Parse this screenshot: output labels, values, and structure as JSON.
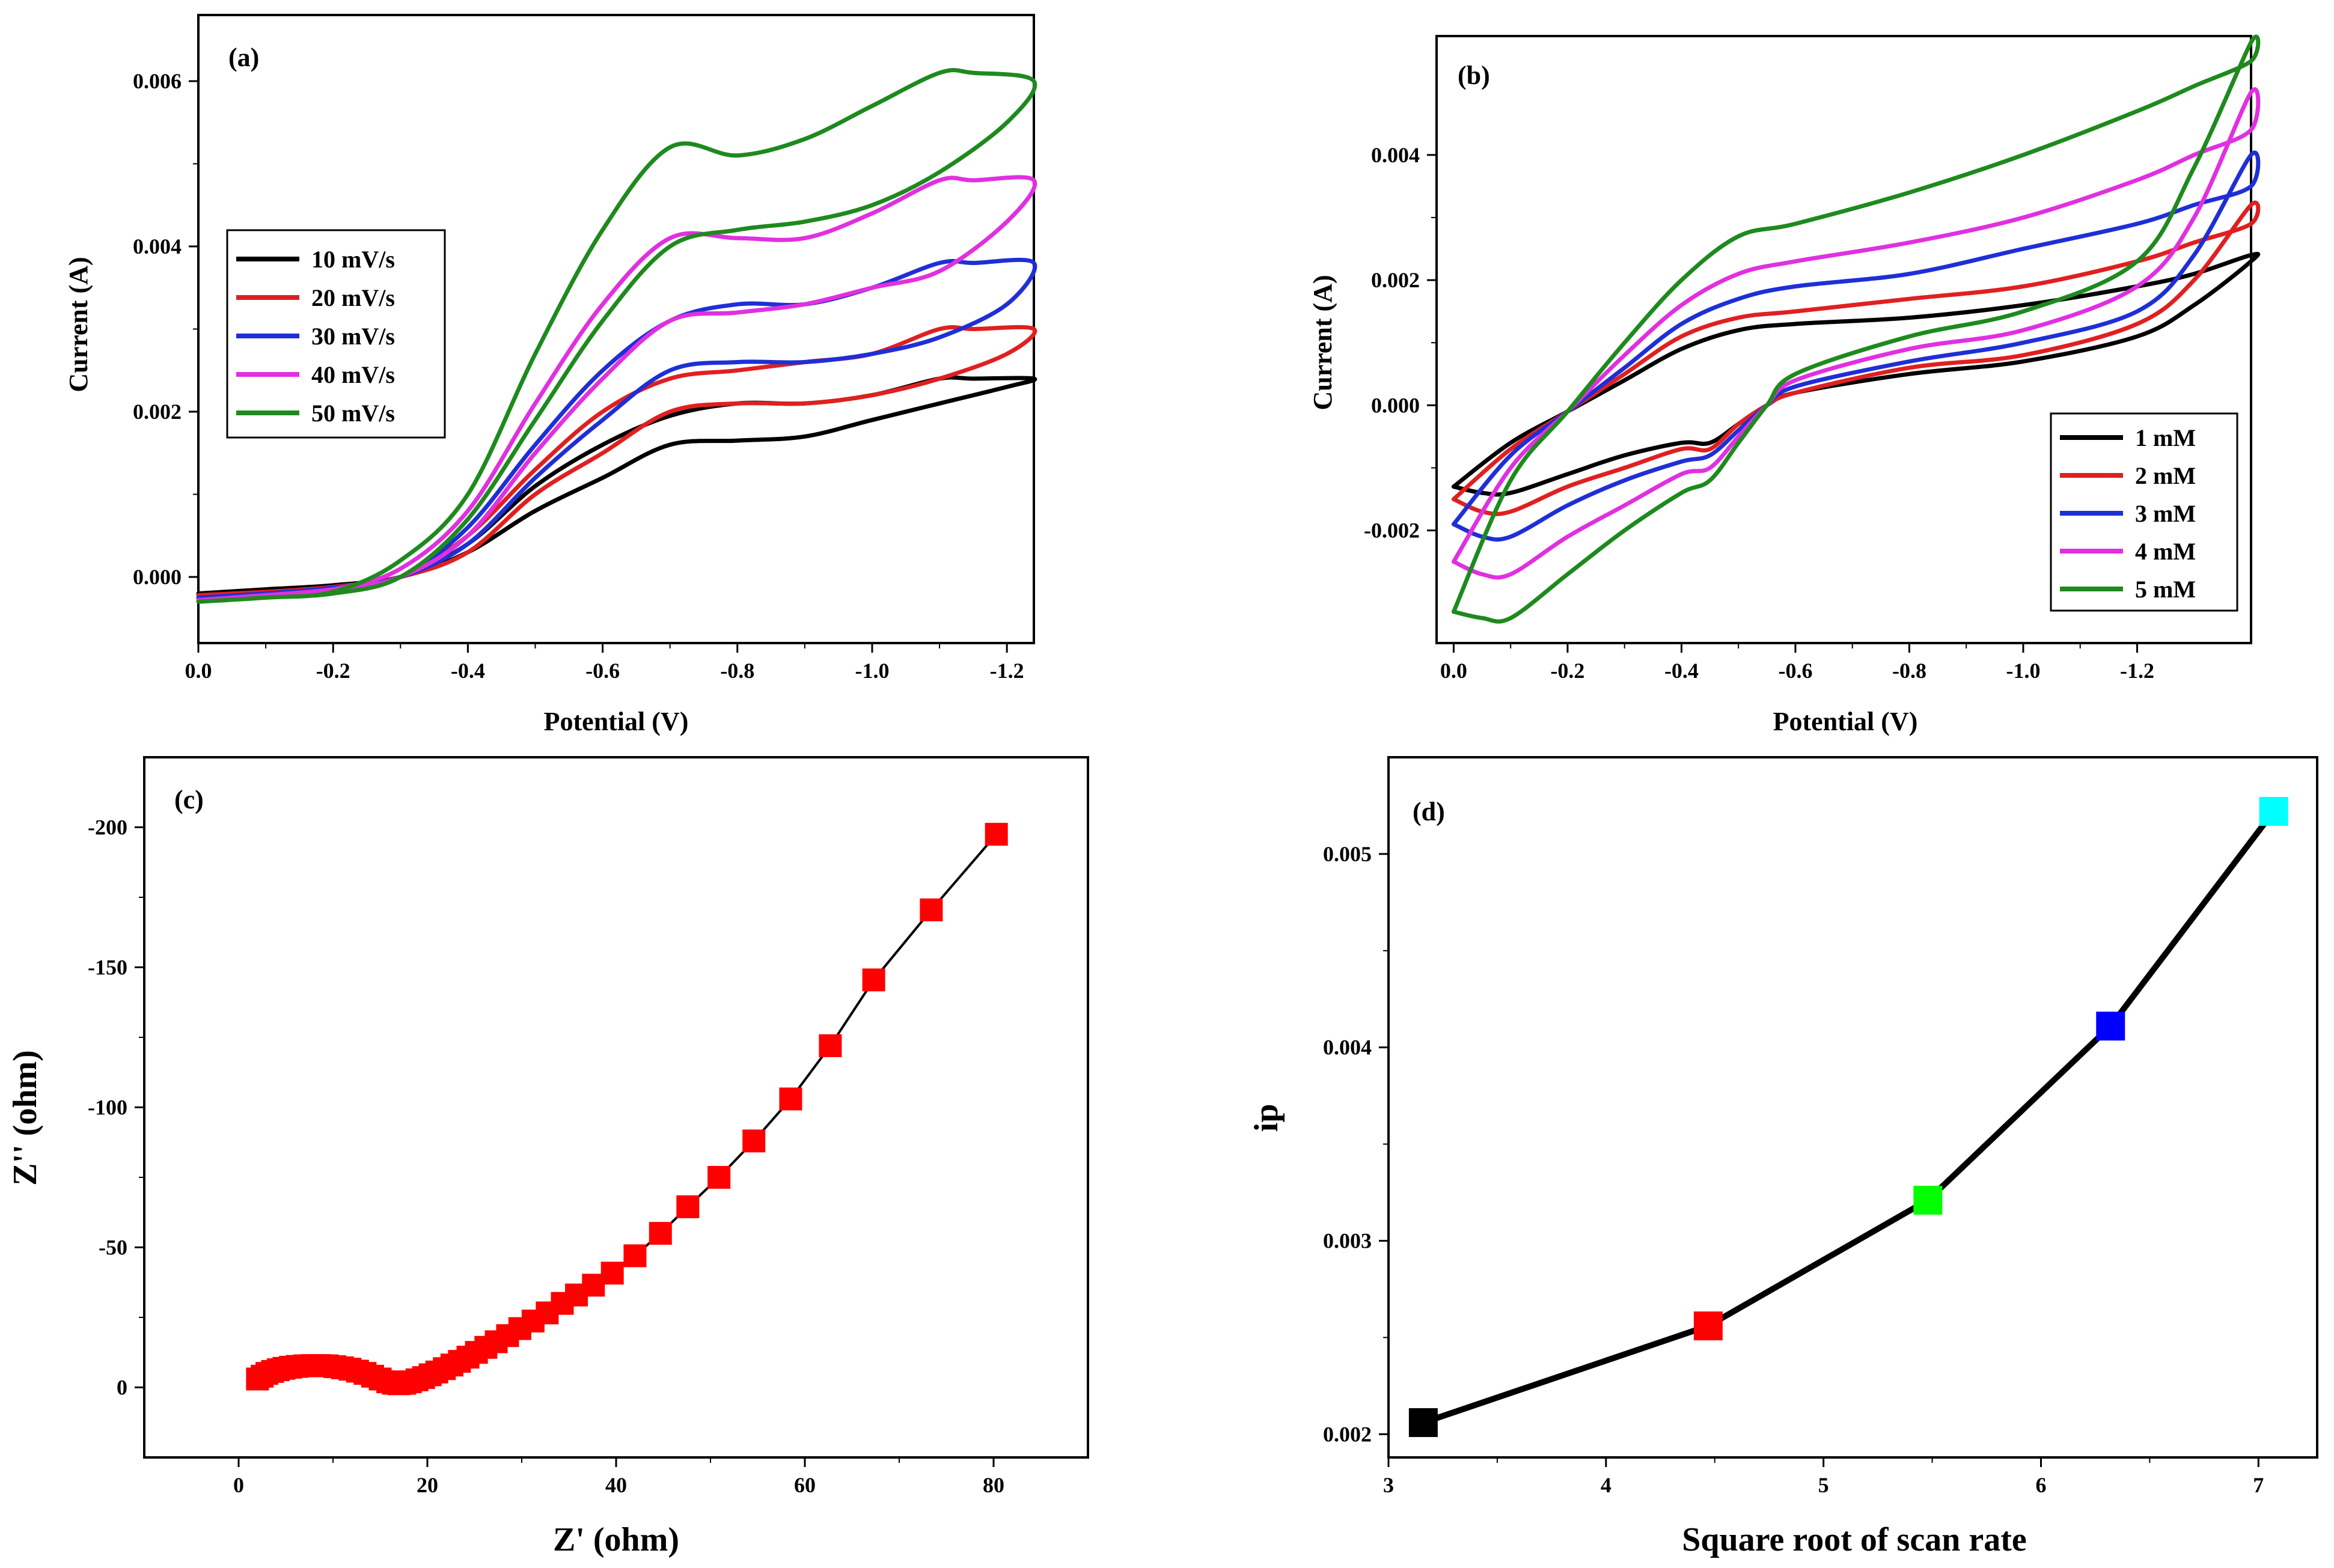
{
  "chart_data": [
    {
      "id": "a",
      "type": "line",
      "panel_label": "(a)",
      "xlabel": "Potential (V)",
      "ylabel": "Current (A)",
      "xlim": [
        0.0,
        -1.24
      ],
      "ylim": [
        -0.0008,
        0.0068
      ],
      "xticks": [
        0.0,
        -0.2,
        -0.4,
        -0.6,
        -0.8,
        -1.0,
        -1.2
      ],
      "xtick_labels": [
        "0.0",
        "-0.2",
        "-0.4",
        "-0.6",
        "-0.8",
        "-1.0",
        "-1.2"
      ],
      "yticks": [
        0.0,
        0.002,
        0.004,
        0.006
      ],
      "ytick_labels": [
        "0.000",
        "0.002",
        "0.004",
        "0.006"
      ],
      "legend_position": "middle-left",
      "series": [
        {
          "name": "10 mV/s",
          "color": "#000000",
          "x": [
            0.0,
            -0.1,
            -0.2,
            -0.3,
            -0.4,
            -0.5,
            -0.6,
            -0.7,
            -0.8,
            -0.9,
            -1.0,
            -1.1,
            -1.15,
            -1.24,
            -1.2,
            -1.1,
            -1.0,
            -0.9,
            -0.8,
            -0.7,
            -0.6,
            -0.5,
            -0.4,
            -0.3,
            -0.2,
            -0.1,
            0.0
          ],
          "y": [
            -0.0002,
            -0.00018,
            -0.00012,
            0.0,
            0.0004,
            0.0011,
            0.0016,
            0.00195,
            0.0021,
            0.0021,
            0.0022,
            0.0024,
            0.0024,
            0.0024,
            0.0023,
            0.0021,
            0.0019,
            0.0017,
            0.00165,
            0.0016,
            0.0012,
            0.0008,
            0.0003,
            0.0,
            -0.0001,
            -0.00015,
            -0.0002
          ]
        },
        {
          "name": "20 mV/s",
          "color": "#e02020",
          "x": [
            0.0,
            -0.1,
            -0.2,
            -0.3,
            -0.4,
            -0.5,
            -0.6,
            -0.7,
            -0.8,
            -0.9,
            -1.0,
            -1.1,
            -1.15,
            -1.24,
            -1.2,
            -1.1,
            -1.0,
            -0.9,
            -0.8,
            -0.7,
            -0.6,
            -0.5,
            -0.4,
            -0.3,
            -0.2,
            -0.1,
            0.0
          ],
          "y": [
            -0.00022,
            -0.0002,
            -0.00012,
            0.0,
            0.0005,
            0.0013,
            0.002,
            0.0024,
            0.0025,
            0.0026,
            0.0027,
            0.003,
            0.003,
            0.003,
            0.0027,
            0.0024,
            0.0022,
            0.0021,
            0.0021,
            0.002,
            0.0015,
            0.001,
            0.0003,
            0.0,
            -0.00012,
            -0.00018,
            -0.00022
          ]
        },
        {
          "name": "30 mV/s",
          "color": "#1f2fd6",
          "x": [
            0.0,
            -0.1,
            -0.2,
            -0.3,
            -0.4,
            -0.5,
            -0.6,
            -0.7,
            -0.8,
            -0.9,
            -1.0,
            -1.1,
            -1.15,
            -1.24,
            -1.2,
            -1.1,
            -1.0,
            -0.9,
            -0.8,
            -0.7,
            -0.6,
            -0.5,
            -0.4,
            -0.3,
            -0.2,
            -0.1,
            0.0
          ],
          "y": [
            -0.00025,
            -0.0002,
            -0.00013,
            0.0,
            0.0006,
            0.0016,
            0.0025,
            0.0031,
            0.0033,
            0.0033,
            0.0035,
            0.0038,
            0.0038,
            0.0038,
            0.0033,
            0.0029,
            0.0027,
            0.0026,
            0.0026,
            0.0025,
            0.0019,
            0.0012,
            0.0004,
            0.0,
            -0.00014,
            -0.0002,
            -0.00025
          ]
        },
        {
          "name": "40 mV/s",
          "color": "#e030e0",
          "x": [
            0.0,
            -0.1,
            -0.2,
            -0.3,
            -0.4,
            -0.5,
            -0.6,
            -0.7,
            -0.8,
            -0.9,
            -1.0,
            -1.1,
            -1.15,
            -1.24,
            -1.2,
            -1.1,
            -1.0,
            -0.9,
            -0.8,
            -0.7,
            -0.6,
            -0.5,
            -0.4,
            -0.3,
            -0.2,
            -0.1,
            0.0
          ],
          "y": [
            -0.00028,
            -0.00022,
            -0.00015,
            0.0001,
            0.0008,
            0.0021,
            0.0033,
            0.0041,
            0.0041,
            0.0041,
            0.0044,
            0.0048,
            0.0048,
            0.0048,
            0.0043,
            0.0037,
            0.0035,
            0.0033,
            0.0032,
            0.0031,
            0.0024,
            0.0015,
            0.0005,
            0.0,
            -0.00015,
            -0.00022,
            -0.00028
          ]
        },
        {
          "name": "50 mV/s",
          "color": "#1e8a1e",
          "x": [
            0.0,
            -0.1,
            -0.2,
            -0.3,
            -0.4,
            -0.5,
            -0.6,
            -0.7,
            -0.8,
            -0.9,
            -1.0,
            -1.1,
            -1.15,
            -1.24,
            -1.2,
            -1.1,
            -1.0,
            -0.9,
            -0.8,
            -0.7,
            -0.6,
            -0.5,
            -0.4,
            -0.3,
            -0.2,
            -0.1,
            0.0
          ],
          "y": [
            -0.0003,
            -0.00025,
            -0.00018,
            0.0002,
            0.001,
            0.0027,
            0.0042,
            0.0052,
            0.0051,
            0.0053,
            0.0057,
            0.0061,
            0.0061,
            0.006,
            0.0055,
            0.0049,
            0.0045,
            0.0043,
            0.0042,
            0.004,
            0.0031,
            0.0019,
            0.0007,
            0.0,
            -0.0002,
            -0.00025,
            -0.0003
          ]
        }
      ]
    },
    {
      "id": "b",
      "type": "line",
      "panel_label": "(b)",
      "xlabel": "Potential (V)",
      "ylabel": "Current (A)",
      "xlim": [
        0.03,
        -1.4
      ],
      "ylim": [
        -0.0038,
        0.0059
      ],
      "xticks": [
        0.0,
        -0.2,
        -0.4,
        -0.6,
        -0.8,
        -1.0,
        -1.2
      ],
      "xtick_labels": [
        "0.0",
        "-0.2",
        "-0.4",
        "-0.6",
        "-0.8",
        "-1.0",
        "-1.2"
      ],
      "yticks": [
        -0.002,
        0.0,
        0.002,
        0.004
      ],
      "ytick_labels": [
        "-0.002",
        "0.000",
        "0.002",
        "0.004"
      ],
      "legend_position": "bottom-right",
      "series": [
        {
          "name": "1 mM",
          "color": "#000000",
          "x": [
            0.0,
            -0.1,
            -0.2,
            -0.3,
            -0.4,
            -0.5,
            -0.6,
            -0.8,
            -1.0,
            -1.2,
            -1.3,
            -1.4,
            -1.4,
            -1.3,
            -1.2,
            -1.0,
            -0.8,
            -0.6,
            -0.55,
            -0.5,
            -0.45,
            -0.4,
            -0.3,
            -0.2,
            -0.1,
            -0.05,
            0.0
          ],
          "y": [
            -0.0013,
            -0.0006,
            -0.0001,
            0.0004,
            0.0009,
            0.0012,
            0.0013,
            0.0014,
            0.0016,
            0.0019,
            0.0021,
            0.0024,
            0.0023,
            0.0016,
            0.0011,
            0.0007,
            0.0005,
            0.0002,
            0.0,
            -0.0003,
            -0.0006,
            -0.0006,
            -0.0008,
            -0.0011,
            -0.0014,
            -0.0014,
            -0.0013
          ]
        },
        {
          "name": "2 mM",
          "color": "#e02020",
          "x": [
            0.0,
            -0.1,
            -0.2,
            -0.3,
            -0.4,
            -0.5,
            -0.6,
            -0.8,
            -1.0,
            -1.2,
            -1.3,
            -1.4,
            -1.4,
            -1.3,
            -1.2,
            -1.0,
            -0.8,
            -0.6,
            -0.55,
            -0.5,
            -0.45,
            -0.4,
            -0.3,
            -0.2,
            -0.1,
            -0.05,
            0.0
          ],
          "y": [
            -0.0015,
            -0.0007,
            -0.0001,
            0.0005,
            0.0011,
            0.0014,
            0.0015,
            0.0017,
            0.0019,
            0.0023,
            0.0026,
            0.0029,
            0.0032,
            0.002,
            0.0013,
            0.0008,
            0.0006,
            0.0002,
            0.0,
            -0.0003,
            -0.0007,
            -0.0007,
            -0.001,
            -0.0013,
            -0.0017,
            -0.0017,
            -0.0015
          ]
        },
        {
          "name": "3 mM",
          "color": "#1f2fd6",
          "x": [
            0.0,
            -0.1,
            -0.2,
            -0.3,
            -0.4,
            -0.5,
            -0.6,
            -0.8,
            -1.0,
            -1.2,
            -1.3,
            -1.4,
            -1.4,
            -1.3,
            -1.2,
            -1.0,
            -0.8,
            -0.6,
            -0.55,
            -0.5,
            -0.45,
            -0.4,
            -0.3,
            -0.2,
            -0.1,
            -0.05,
            0.0
          ],
          "y": [
            -0.0019,
            -0.0008,
            -0.0001,
            0.0006,
            0.0013,
            0.0017,
            0.0019,
            0.0021,
            0.0025,
            0.0029,
            0.0032,
            0.0035,
            0.004,
            0.0024,
            0.0015,
            0.001,
            0.0007,
            0.0003,
            0.0,
            -0.0004,
            -0.0008,
            -0.0009,
            -0.0012,
            -0.0016,
            -0.0021,
            -0.0021,
            -0.0019
          ]
        },
        {
          "name": "4 mM",
          "color": "#e030e0",
          "x": [
            0.0,
            -0.1,
            -0.2,
            -0.3,
            -0.4,
            -0.5,
            -0.6,
            -0.8,
            -1.0,
            -1.2,
            -1.3,
            -1.4,
            -1.4,
            -1.3,
            -1.2,
            -1.0,
            -0.8,
            -0.6,
            -0.55,
            -0.5,
            -0.45,
            -0.4,
            -0.3,
            -0.2,
            -0.1,
            -0.05,
            0.0
          ],
          "y": [
            -0.0025,
            -0.001,
            -0.0001,
            0.0008,
            0.0016,
            0.0021,
            0.0023,
            0.0026,
            0.003,
            0.0036,
            0.004,
            0.0044,
            0.005,
            0.003,
            0.0019,
            0.0012,
            0.0009,
            0.0004,
            0.0,
            -0.0005,
            -0.001,
            -0.0011,
            -0.0016,
            -0.0021,
            -0.0027,
            -0.0027,
            -0.0025
          ]
        },
        {
          "name": "5 mM",
          "color": "#1e8a1e",
          "x": [
            0.0,
            -0.1,
            -0.2,
            -0.3,
            -0.4,
            -0.5,
            -0.6,
            -0.8,
            -1.0,
            -1.2,
            -1.3,
            -1.4,
            -1.4,
            -1.3,
            -1.2,
            -1.0,
            -0.8,
            -0.6,
            -0.55,
            -0.5,
            -0.45,
            -0.4,
            -0.3,
            -0.2,
            -0.1,
            -0.05,
            0.0
          ],
          "y": [
            -0.0033,
            -0.0012,
            -0.0001,
            0.001,
            0.002,
            0.0027,
            0.0029,
            0.0034,
            0.004,
            0.0047,
            0.0051,
            0.0055,
            0.0058,
            0.0038,
            0.0023,
            0.0015,
            0.0011,
            0.0005,
            0.0,
            -0.0006,
            -0.0012,
            -0.0014,
            -0.002,
            -0.0027,
            -0.0034,
            -0.0034,
            -0.0033
          ]
        }
      ]
    },
    {
      "id": "c",
      "type": "scatter",
      "panel_label": "(c)",
      "xlabel": "Z' (ohm)",
      "ylabel": "Z'' (ohm)",
      "xlim": [
        -10,
        90
      ],
      "ylim": [
        25,
        -225
      ],
      "xticks": [
        0,
        20,
        40,
        60,
        80
      ],
      "xtick_labels": [
        "0",
        "20",
        "40",
        "60",
        "80"
      ],
      "yticks": [
        0,
        -50,
        -100,
        -150,
        -200
      ],
      "ytick_labels": [
        "0",
        "-50",
        "-100",
        "-150",
        "-200"
      ],
      "marker_color": "#ff0000",
      "line_color": "#000000",
      "x": [
        2.0,
        2.5,
        3.0,
        3.6,
        4.2,
        4.8,
        5.5,
        6.2,
        7.0,
        7.8,
        8.6,
        9.4,
        10.2,
        11.0,
        11.8,
        12.6,
        13.4,
        14.2,
        15.0,
        15.8,
        16.4,
        17.0,
        17.6,
        18.2,
        18.9,
        19.6,
        20.3,
        21.0,
        21.8,
        22.6,
        23.4,
        24.3,
        25.2,
        26.2,
        27.3,
        28.5,
        29.8,
        31.2,
        32.7,
        34.3,
        35.8,
        37.6,
        39.6,
        42.0,
        44.7,
        47.6,
        50.9,
        54.6,
        58.5,
        62.7,
        67.3,
        73.4,
        80.3
      ],
      "y": [
        -3.0,
        -4.0,
        -5.0,
        -5.7,
        -6.3,
        -6.8,
        -7.2,
        -7.5,
        -7.7,
        -7.8,
        -7.8,
        -7.7,
        -7.4,
        -7.0,
        -6.5,
        -5.8,
        -5.0,
        -4.0,
        -3.0,
        -2.0,
        -1.5,
        -1.3,
        -1.5,
        -2.0,
        -2.7,
        -3.5,
        -4.5,
        -5.5,
        -6.7,
        -8.0,
        -9.3,
        -10.8,
        -12.5,
        -14.3,
        -16.3,
        -18.5,
        -21.0,
        -23.7,
        -26.6,
        -30.0,
        -33.0,
        -36.5,
        -40.8,
        -47.0,
        -55.0,
        -64.5,
        -75.0,
        -88.0,
        -103.0,
        -122.0,
        -145.5,
        -170.5,
        -197.5
      ]
    },
    {
      "id": "d",
      "type": "line",
      "panel_label": "(d)",
      "xlabel": "Square root of scan rate",
      "ylabel": "ip",
      "xlim": [
        3,
        7.27
      ],
      "ylim": [
        0.00188,
        0.0055
      ],
      "xticks": [
        3,
        4,
        5,
        6,
        7
      ],
      "xtick_labels": [
        "3",
        "4",
        "5",
        "6",
        "7"
      ],
      "yticks": [
        0.002,
        0.003,
        0.004,
        0.005
      ],
      "ytick_labels": [
        "0.002",
        "0.003",
        "0.004",
        "0.005"
      ],
      "line_color": "#000000",
      "x": [
        3.16,
        4.47,
        5.48,
        6.32,
        7.07
      ],
      "y": [
        0.00206,
        0.00256,
        0.00321,
        0.00411,
        0.00522
      ],
      "marker_colors": [
        "#000000",
        "#ff0000",
        "#00ff00",
        "#0000ff",
        "#00ffff"
      ]
    }
  ]
}
